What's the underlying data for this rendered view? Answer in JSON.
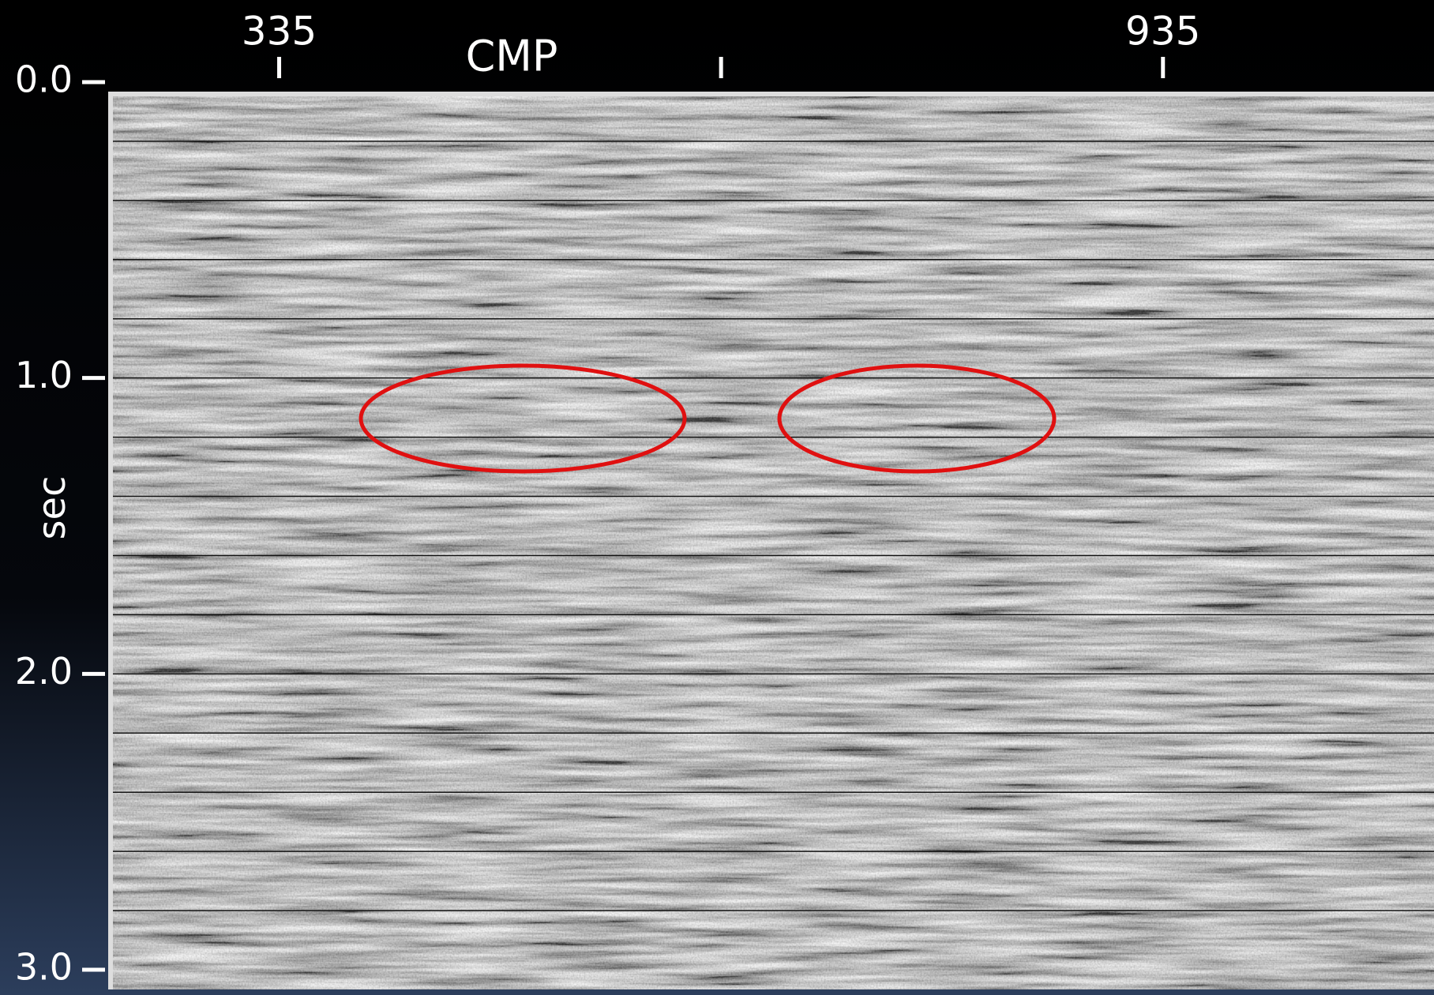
{
  "chart_data": {
    "type": "seismic-section",
    "x_label": "CMP",
    "y_label": "sec",
    "xlim": [
      220,
      1119
    ],
    "xticks": [
      335,
      {
        "value": 635,
        "label": null
      },
      935
    ],
    "ylim": [
      0,
      3
    ],
    "yticks": [
      {
        "value": 0,
        "label": "0.0"
      },
      {
        "value": 1,
        "label": "1.0"
      },
      {
        "value": 2,
        "label": "2.0"
      },
      {
        "value": 3,
        "label": "3.0"
      }
    ],
    "grid": [
      0.2,
      0.4,
      0.6,
      0.8,
      1.0,
      1.2,
      1.4,
      1.6,
      1.8,
      2.0,
      2.2,
      2.4,
      2.6,
      2.8
    ],
    "grid_color": "#111111",
    "annotation_color": "#e01010"
  }
}
